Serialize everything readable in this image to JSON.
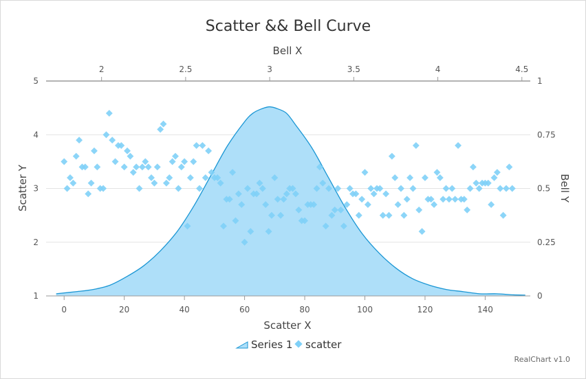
{
  "chart_data": {
    "type": "scatter",
    "title": "Scatter && Bell Curve",
    "credit": "RealChart v1.0",
    "x_axis": {
      "title": "Scatter X",
      "min": -6,
      "max": 155,
      "ticks": [
        0,
        20,
        40,
        60,
        80,
        100,
        120,
        140
      ]
    },
    "x2_axis": {
      "title": "Bell X",
      "min": 1.67,
      "max": 4.55,
      "ticks": [
        2,
        2.5,
        3,
        3.5,
        4,
        4.5
      ]
    },
    "y_axis": {
      "title": "Scatter Y",
      "min": 1,
      "max": 5,
      "ticks": [
        1,
        2,
        3,
        4,
        5
      ]
    },
    "y2_axis": {
      "title": "Bell Y",
      "min": 0,
      "max": 1,
      "ticks": [
        0,
        0.25,
        0.5,
        0.75,
        1
      ]
    },
    "grid": true,
    "legend": {
      "position": "bottom"
    },
    "colors": {
      "scatter": "#7fd0f7",
      "bell_fill": "#aedff9",
      "bell_line": "#1a96d4"
    },
    "series": [
      {
        "name": "Series 1",
        "type": "area",
        "axis": "secondary",
        "x": [
          1.73,
          1.85,
          1.95,
          2.05,
          2.15,
          2.25,
          2.35,
          2.45,
          2.55,
          2.65,
          2.75,
          2.85,
          2.9,
          2.95,
          3.0,
          3.05,
          3.1,
          3.15,
          3.25,
          3.35,
          3.45,
          3.55,
          3.65,
          3.75,
          3.85,
          3.95,
          4.05,
          4.15,
          4.25,
          4.35,
          4.45,
          4.52
        ],
        "y": [
          0.01,
          0.02,
          0.03,
          0.05,
          0.09,
          0.14,
          0.21,
          0.3,
          0.42,
          0.56,
          0.7,
          0.81,
          0.85,
          0.87,
          0.88,
          0.87,
          0.85,
          0.8,
          0.69,
          0.55,
          0.41,
          0.29,
          0.2,
          0.13,
          0.08,
          0.05,
          0.03,
          0.02,
          0.01,
          0.01,
          0.005,
          0.004
        ]
      },
      {
        "name": "scatter",
        "type": "scatter",
        "axis": "primary",
        "x": [
          0,
          1,
          2,
          3,
          4,
          5,
          6,
          7,
          8,
          9,
          10,
          11,
          12,
          13,
          14,
          15,
          16,
          17,
          18,
          19,
          20,
          21,
          22,
          23,
          24,
          25,
          26,
          27,
          28,
          29,
          30,
          31,
          32,
          33,
          34,
          35,
          36,
          37,
          38,
          39,
          40,
          41,
          42,
          43,
          44,
          45,
          46,
          47,
          48,
          49,
          50,
          51,
          52,
          53,
          54,
          55,
          56,
          57,
          58,
          59,
          60,
          61,
          62,
          63,
          64,
          65,
          66,
          67,
          68,
          69,
          70,
          71,
          72,
          73,
          74,
          75,
          76,
          77,
          78,
          79,
          80,
          81,
          82,
          83,
          84,
          85,
          86,
          87,
          88,
          89,
          90,
          91,
          92,
          93,
          94,
          95,
          96,
          97,
          98,
          99,
          100,
          101,
          102,
          103,
          104,
          105,
          106,
          107,
          108,
          109,
          110,
          111,
          112,
          113,
          114,
          115,
          116,
          117,
          118,
          119,
          120,
          121,
          122,
          123,
          124,
          125,
          126,
          127,
          128,
          129,
          130,
          131,
          132,
          133,
          134,
          135,
          136,
          137,
          138,
          139,
          140,
          141,
          142,
          143,
          144,
          145,
          146,
          147,
          148,
          149
        ],
        "y": [
          3.5,
          3.0,
          3.2,
          3.1,
          3.6,
          3.9,
          3.4,
          3.4,
          2.9,
          3.1,
          3.7,
          3.4,
          3.0,
          3.0,
          4.0,
          4.4,
          3.9,
          3.5,
          3.8,
          3.8,
          3.4,
          3.7,
          3.6,
          3.3,
          3.4,
          3.0,
          3.4,
          3.5,
          3.4,
          3.2,
          3.1,
          3.4,
          4.1,
          4.2,
          3.1,
          3.2,
          3.5,
          3.6,
          3.0,
          3.4,
          3.5,
          2.3,
          3.2,
          3.5,
          3.8,
          3.0,
          3.8,
          3.2,
          3.7,
          3.3,
          3.2,
          3.2,
          3.1,
          2.3,
          2.8,
          2.8,
          3.3,
          2.4,
          2.9,
          2.7,
          2.0,
          3.0,
          2.2,
          2.9,
          2.9,
          3.1,
          3.0,
          2.7,
          2.2,
          2.5,
          3.2,
          2.8,
          2.5,
          2.8,
          2.9,
          3.0,
          3.0,
          2.9,
          2.6,
          2.4,
          2.4,
          2.7,
          2.7,
          2.7,
          3.0,
          3.4,
          3.1,
          2.3,
          3.0,
          2.5,
          2.6,
          3.0,
          2.6,
          2.3,
          2.7,
          3.0,
          2.9,
          2.9,
          2.5,
          2.8,
          3.3,
          2.7,
          3.0,
          2.9,
          3.0,
          3.0,
          2.5,
          2.9,
          2.5,
          3.6,
          3.2,
          2.7,
          3.0,
          2.5,
          2.8,
          3.2,
          3.0,
          3.8,
          2.6,
          2.2,
          3.2,
          2.8,
          2.8,
          2.7,
          3.3,
          3.2,
          2.8,
          3.0,
          2.8,
          3.0,
          2.8,
          3.8,
          2.8,
          2.8,
          2.6,
          3.0,
          3.4,
          3.1,
          3.0,
          3.1,
          3.1,
          3.1,
          2.7,
          3.2,
          3.3,
          3.0,
          2.5,
          3.0,
          3.4,
          3.0
        ]
      }
    ]
  }
}
